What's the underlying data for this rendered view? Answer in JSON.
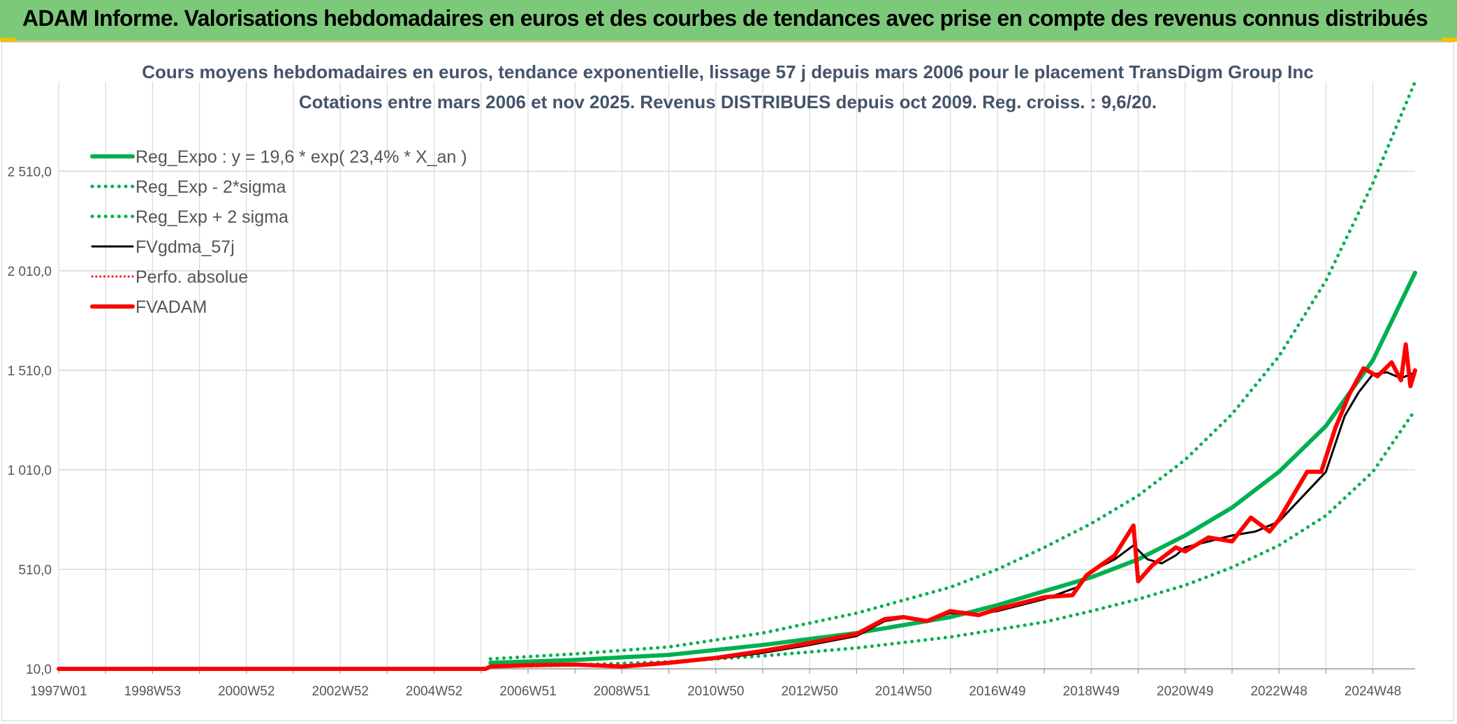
{
  "banner": {
    "title": "ADAM Informe. Valorisations hebdomadaires en euros et des courbes de tendances avec prise en compte des revenus connus distribués"
  },
  "colors": {
    "banner_bg": "#7dc97a",
    "green": "#00b050",
    "red": "#ff0000",
    "black": "#000000",
    "grid": "#d9d9d9"
  },
  "chart_data": {
    "type": "line",
    "title": "Cours moyens hebdomadaires en euros, tendance exponentielle, lissage 57 j depuis mars 2006 pour le placement TransDigm Group Inc",
    "subtitle": "Cotations entre mars 2006 et nov 2025. Revenus DISTRIBUES depuis oct 2009. Reg. croiss. : 9,6/20.",
    "xlabel": "",
    "ylabel": "",
    "x_range": [
      1997.0,
      2025.9
    ],
    "ylim": [
      10,
      2960
    ],
    "y_ticks": [
      {
        "value": 10,
        "label": "10,0"
      },
      {
        "value": 510,
        "label": "510,0"
      },
      {
        "value": 1010,
        "label": "1 010,0"
      },
      {
        "value": 1510,
        "label": "1 510,0"
      },
      {
        "value": 2010,
        "label": "2 010,0"
      },
      {
        "value": 2510,
        "label": "2 510,0"
      }
    ],
    "x_ticks": [
      {
        "value": 1997.0,
        "label": "1997W01"
      },
      {
        "value": 1999.0,
        "label": "1998W53"
      },
      {
        "value": 2001.0,
        "label": "2000W52"
      },
      {
        "value": 2003.0,
        "label": "2002W52"
      },
      {
        "value": 2005.0,
        "label": "2004W52"
      },
      {
        "value": 2007.0,
        "label": "2006W51"
      },
      {
        "value": 2009.0,
        "label": "2008W51"
      },
      {
        "value": 2011.0,
        "label": "2010W50"
      },
      {
        "value": 2013.0,
        "label": "2012W50"
      },
      {
        "value": 2015.0,
        "label": "2014W50"
      },
      {
        "value": 2017.0,
        "label": "2016W49"
      },
      {
        "value": 2019.0,
        "label": "2018W49"
      },
      {
        "value": 2021.0,
        "label": "2020W49"
      },
      {
        "value": 2023.0,
        "label": "2022W48"
      },
      {
        "value": 2025.0,
        "label": "2024W48"
      }
    ],
    "legend_position": "top-left",
    "series": [
      {
        "name": "Reg_Expo : y = 19,6 * exp( 23,4% *  X_an )",
        "style": "solid",
        "color": "#00b050",
        "width": 6,
        "points": [
          [
            2006.2,
            40
          ],
          [
            2008,
            55
          ],
          [
            2010,
            80
          ],
          [
            2012,
            130
          ],
          [
            2014,
            190
          ],
          [
            2016,
            270
          ],
          [
            2017,
            330
          ],
          [
            2018,
            400
          ],
          [
            2019,
            470
          ],
          [
            2020,
            560
          ],
          [
            2021,
            680
          ],
          [
            2022,
            820
          ],
          [
            2023,
            1000
          ],
          [
            2024,
            1230
          ],
          [
            2025,
            1560
          ],
          [
            2025.9,
            2000
          ]
        ]
      },
      {
        "name": "Reg_Exp - 2*sigma",
        "style": "dotted",
        "color": "#00b050",
        "width": 5,
        "points": [
          [
            2006.2,
            20
          ],
          [
            2008,
            30
          ],
          [
            2010,
            45
          ],
          [
            2012,
            75
          ],
          [
            2014,
            115
          ],
          [
            2016,
            170
          ],
          [
            2018,
            245
          ],
          [
            2019,
            300
          ],
          [
            2020,
            360
          ],
          [
            2021,
            430
          ],
          [
            2022,
            520
          ],
          [
            2023,
            630
          ],
          [
            2024,
            780
          ],
          [
            2025,
            1000
          ],
          [
            2025.9,
            1310
          ]
        ]
      },
      {
        "name": "Reg_Exp + 2 sigma",
        "style": "dotted",
        "color": "#00b050",
        "width": 5,
        "points": [
          [
            2006.2,
            60
          ],
          [
            2008,
            85
          ],
          [
            2010,
            120
          ],
          [
            2012,
            190
          ],
          [
            2014,
            290
          ],
          [
            2016,
            420
          ],
          [
            2017,
            510
          ],
          [
            2018,
            620
          ],
          [
            2019,
            740
          ],
          [
            2020,
            880
          ],
          [
            2021,
            1060
          ],
          [
            2022,
            1290
          ],
          [
            2023,
            1580
          ],
          [
            2024,
            1960
          ],
          [
            2025,
            2450
          ],
          [
            2025.9,
            2960
          ]
        ]
      },
      {
        "name": "FVgdma_57j",
        "style": "solid",
        "color": "#000000",
        "width": 3,
        "points": [
          [
            2006.2,
            25
          ],
          [
            2007,
            28
          ],
          [
            2008,
            30
          ],
          [
            2009,
            25
          ],
          [
            2010,
            40
          ],
          [
            2011,
            60
          ],
          [
            2012,
            90
          ],
          [
            2013,
            130
          ],
          [
            2014,
            175
          ],
          [
            2014.6,
            250
          ],
          [
            2015,
            265
          ],
          [
            2015.5,
            255
          ],
          [
            2016,
            290
          ],
          [
            2016.6,
            285
          ],
          [
            2017,
            300
          ],
          [
            2018,
            360
          ],
          [
            2018.7,
            420
          ],
          [
            2019,
            500
          ],
          [
            2019.5,
            560
          ],
          [
            2019.9,
            630
          ],
          [
            2020.2,
            560
          ],
          [
            2020.5,
            540
          ],
          [
            2020.8,
            580
          ],
          [
            2021,
            620
          ],
          [
            2021.5,
            650
          ],
          [
            2022,
            680
          ],
          [
            2022.5,
            700
          ],
          [
            2023,
            750
          ],
          [
            2023.6,
            900
          ],
          [
            2024,
            1000
          ],
          [
            2024.4,
            1280
          ],
          [
            2024.7,
            1400
          ],
          [
            2025,
            1490
          ],
          [
            2025.3,
            1500
          ],
          [
            2025.6,
            1470
          ],
          [
            2025.9,
            1500
          ]
        ]
      },
      {
        "name": "Perfo. absolue",
        "style": "dotted",
        "color": "#ff0000",
        "width": 3,
        "points": [
          [
            1997,
            10
          ],
          [
            2006.2,
            10
          ]
        ]
      },
      {
        "name": "FVADAM",
        "style": "solid",
        "color": "#ff0000",
        "width": 6,
        "points": [
          [
            1997,
            10
          ],
          [
            2006.1,
            10
          ],
          [
            2006.2,
            22
          ],
          [
            2007,
            28
          ],
          [
            2008,
            32
          ],
          [
            2009,
            22
          ],
          [
            2010,
            40
          ],
          [
            2011,
            65
          ],
          [
            2012,
            100
          ],
          [
            2013,
            140
          ],
          [
            2014,
            185
          ],
          [
            2014.6,
            260
          ],
          [
            2015,
            270
          ],
          [
            2015.5,
            250
          ],
          [
            2016,
            300
          ],
          [
            2016.6,
            280
          ],
          [
            2017,
            310
          ],
          [
            2018,
            370
          ],
          [
            2018.6,
            380
          ],
          [
            2018.9,
            480
          ],
          [
            2019.5,
            580
          ],
          [
            2019.9,
            730
          ],
          [
            2020.0,
            450
          ],
          [
            2020.3,
            530
          ],
          [
            2020.8,
            620
          ],
          [
            2021,
            600
          ],
          [
            2021.5,
            670
          ],
          [
            2022,
            650
          ],
          [
            2022.4,
            770
          ],
          [
            2022.8,
            700
          ],
          [
            2023,
            760
          ],
          [
            2023.6,
            1000
          ],
          [
            2023.9,
            1000
          ],
          [
            2024.2,
            1220
          ],
          [
            2024.5,
            1390
          ],
          [
            2024.8,
            1520
          ],
          [
            2025.1,
            1480
          ],
          [
            2025.4,
            1550
          ],
          [
            2025.6,
            1460
          ],
          [
            2025.7,
            1640
          ],
          [
            2025.8,
            1430
          ],
          [
            2025.9,
            1510
          ]
        ]
      }
    ]
  }
}
